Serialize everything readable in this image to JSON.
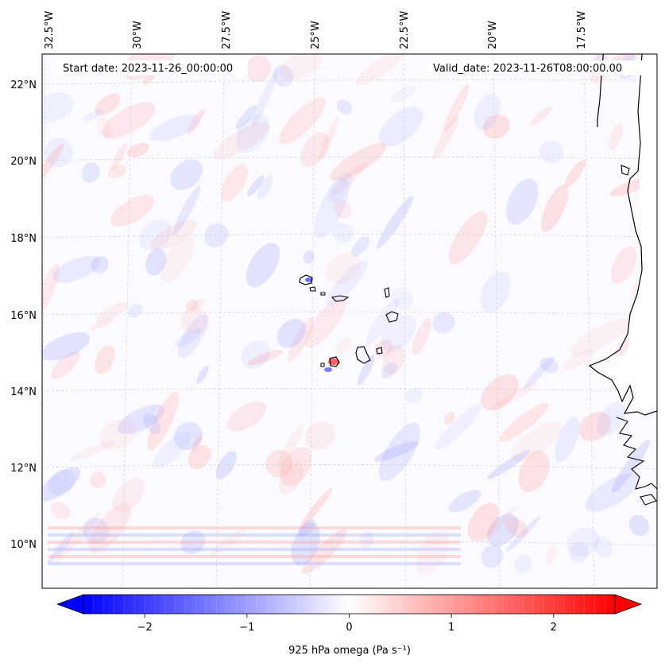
{
  "header": {
    "start_date": "Start date: 2023-11-26_00:00:00",
    "valid_date": "Valid_date: 2023-11-26T08:00:00.00"
  },
  "map": {
    "lon_labels": [
      "32.5°W",
      "30°W",
      "27.5°W",
      "25°W",
      "22.5°W",
      "20°W",
      "17.5°W"
    ],
    "lat_labels": [
      "22°N",
      "20°N",
      "18°N",
      "16°N",
      "14°N",
      "12°N",
      "10°N"
    ],
    "gridlines": "dashed light gray",
    "coastline_color": "#000000",
    "field": "925 hPa omega",
    "field_positive_color": "#ff0000",
    "field_negative_color": "#0000ff",
    "field_zero_color": "#ffffff"
  },
  "colorbar": {
    "label": "925 hPa omega (Pa s⁻¹)",
    "ticks": [
      "−2",
      "−1",
      "0",
      "1",
      "2"
    ],
    "tick_values": [
      -2,
      -1,
      0,
      1,
      2
    ],
    "range": [
      -2.6,
      2.6
    ],
    "extend": "both",
    "colormap": "bwr"
  }
}
